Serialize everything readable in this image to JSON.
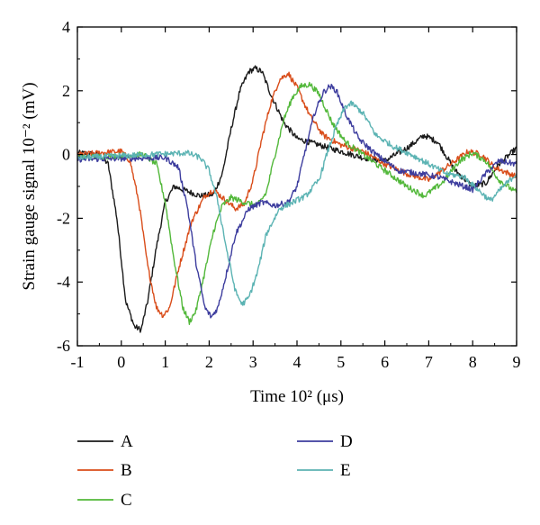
{
  "chart_data": {
    "type": "line",
    "title": "",
    "xlabel": "Time 10² (μs)",
    "ylabel": "Strain gauge signal 10⁻² (mV)",
    "xlim": [
      -1,
      9
    ],
    "ylim": [
      -6,
      4
    ],
    "xticks": [
      "-1",
      "0",
      "1",
      "2",
      "3",
      "4",
      "5",
      "6",
      "7",
      "8",
      "9"
    ],
    "yticks": [
      "-6",
      "-4",
      "-2",
      "0",
      "2",
      "4"
    ],
    "grid": false,
    "legend_position": "bottom",
    "series": [
      {
        "name": "A",
        "color": "#1a1a1a",
        "points": [
          [
            -1,
            0.05
          ],
          [
            -0.5,
            0.0
          ],
          [
            -0.3,
            -0.3
          ],
          [
            -0.1,
            -2.0
          ],
          [
            0.1,
            -4.6
          ],
          [
            0.3,
            -5.4
          ],
          [
            0.45,
            -5.5
          ],
          [
            0.6,
            -4.6
          ],
          [
            0.8,
            -2.9
          ],
          [
            1.0,
            -1.5
          ],
          [
            1.2,
            -1.0
          ],
          [
            1.5,
            -1.15
          ],
          [
            1.8,
            -1.3
          ],
          [
            2.1,
            -1.25
          ],
          [
            2.3,
            -0.6
          ],
          [
            2.5,
            0.8
          ],
          [
            2.7,
            2.0
          ],
          [
            2.9,
            2.6
          ],
          [
            3.05,
            2.7
          ],
          [
            3.2,
            2.6
          ],
          [
            3.4,
            1.9
          ],
          [
            3.7,
            1.0
          ],
          [
            4.0,
            0.5
          ],
          [
            4.5,
            0.3
          ],
          [
            5.0,
            0.1
          ],
          [
            5.5,
            -0.1
          ],
          [
            6.0,
            -0.2
          ],
          [
            6.5,
            0.2
          ],
          [
            6.9,
            0.6
          ],
          [
            7.2,
            0.4
          ],
          [
            7.6,
            -0.5
          ],
          [
            8.0,
            -1.0
          ],
          [
            8.3,
            -0.9
          ],
          [
            8.6,
            -0.3
          ],
          [
            9.0,
            0.2
          ]
        ]
      },
      {
        "name": "B",
        "color": "#d94d1a",
        "points": [
          [
            -1,
            0.0
          ],
          [
            0.0,
            0.1
          ],
          [
            0.2,
            -0.2
          ],
          [
            0.4,
            -1.5
          ],
          [
            0.6,
            -3.5
          ],
          [
            0.8,
            -4.8
          ],
          [
            0.95,
            -5.05
          ],
          [
            1.1,
            -4.8
          ],
          [
            1.3,
            -3.6
          ],
          [
            1.6,
            -2.1
          ],
          [
            1.9,
            -1.3
          ],
          [
            2.1,
            -1.1
          ],
          [
            2.3,
            -1.35
          ],
          [
            2.6,
            -1.7
          ],
          [
            2.8,
            -1.55
          ],
          [
            3.0,
            -0.8
          ],
          [
            3.2,
            0.5
          ],
          [
            3.4,
            1.6
          ],
          [
            3.6,
            2.35
          ],
          [
            3.8,
            2.55
          ],
          [
            4.0,
            2.1
          ],
          [
            4.3,
            1.2
          ],
          [
            4.6,
            0.6
          ],
          [
            5.0,
            0.3
          ],
          [
            5.5,
            0.1
          ],
          [
            6.0,
            -0.3
          ],
          [
            6.5,
            -0.6
          ],
          [
            7.0,
            -0.8
          ],
          [
            7.5,
            -0.3
          ],
          [
            7.9,
            0.1
          ],
          [
            8.2,
            0.0
          ],
          [
            8.5,
            -0.4
          ],
          [
            9.0,
            -0.7
          ]
        ]
      },
      {
        "name": "C",
        "color": "#52b83a",
        "points": [
          [
            -1,
            -0.1
          ],
          [
            0.5,
            0.0
          ],
          [
            0.8,
            -0.3
          ],
          [
            1.0,
            -1.5
          ],
          [
            1.2,
            -3.3
          ],
          [
            1.4,
            -4.8
          ],
          [
            1.55,
            -5.25
          ],
          [
            1.7,
            -4.9
          ],
          [
            1.9,
            -3.7
          ],
          [
            2.1,
            -2.4
          ],
          [
            2.3,
            -1.6
          ],
          [
            2.5,
            -1.35
          ],
          [
            2.8,
            -1.5
          ],
          [
            3.1,
            -1.6
          ],
          [
            3.3,
            -1.2
          ],
          [
            3.5,
            0.0
          ],
          [
            3.7,
            1.1
          ],
          [
            3.9,
            1.8
          ],
          [
            4.1,
            2.15
          ],
          [
            4.3,
            2.2
          ],
          [
            4.5,
            1.9
          ],
          [
            4.8,
            1.0
          ],
          [
            5.1,
            0.4
          ],
          [
            5.5,
            0.0
          ],
          [
            6.0,
            -0.5
          ],
          [
            6.5,
            -1.0
          ],
          [
            6.9,
            -1.3
          ],
          [
            7.3,
            -0.9
          ],
          [
            7.7,
            -0.2
          ],
          [
            8.0,
            0.05
          ],
          [
            8.3,
            -0.2
          ],
          [
            8.6,
            -0.8
          ],
          [
            9.0,
            -1.2
          ]
        ]
      },
      {
        "name": "D",
        "color": "#3d3d9e",
        "points": [
          [
            -1,
            -0.15
          ],
          [
            1.0,
            -0.1
          ],
          [
            1.3,
            -0.4
          ],
          [
            1.5,
            -1.6
          ],
          [
            1.7,
            -3.4
          ],
          [
            1.9,
            -4.8
          ],
          [
            2.05,
            -5.1
          ],
          [
            2.2,
            -4.8
          ],
          [
            2.4,
            -3.7
          ],
          [
            2.6,
            -2.5
          ],
          [
            2.9,
            -1.7
          ],
          [
            3.2,
            -1.5
          ],
          [
            3.5,
            -1.6
          ],
          [
            3.8,
            -1.5
          ],
          [
            4.0,
            -1.0
          ],
          [
            4.2,
            0.2
          ],
          [
            4.4,
            1.3
          ],
          [
            4.6,
            1.95
          ],
          [
            4.75,
            2.15
          ],
          [
            4.9,
            2.0
          ],
          [
            5.1,
            1.3
          ],
          [
            5.4,
            0.5
          ],
          [
            5.8,
            0.0
          ],
          [
            6.3,
            -0.5
          ],
          [
            6.8,
            -0.6
          ],
          [
            7.2,
            -0.7
          ],
          [
            7.6,
            -0.9
          ],
          [
            8.0,
            -1.1
          ],
          [
            8.3,
            -0.6
          ],
          [
            8.6,
            -0.2
          ],
          [
            9.0,
            -0.3
          ]
        ]
      },
      {
        "name": "E",
        "color": "#5bb3b3",
        "points": [
          [
            -1,
            -0.1
          ],
          [
            1.5,
            0.05
          ],
          [
            1.8,
            -0.1
          ],
          [
            2.0,
            -0.5
          ],
          [
            2.2,
            -1.5
          ],
          [
            2.4,
            -3.0
          ],
          [
            2.6,
            -4.3
          ],
          [
            2.75,
            -4.7
          ],
          [
            2.9,
            -4.5
          ],
          [
            3.1,
            -3.7
          ],
          [
            3.3,
            -2.5
          ],
          [
            3.6,
            -1.7
          ],
          [
            3.9,
            -1.5
          ],
          [
            4.2,
            -1.3
          ],
          [
            4.5,
            -0.8
          ],
          [
            4.7,
            0.1
          ],
          [
            4.9,
            0.9
          ],
          [
            5.1,
            1.5
          ],
          [
            5.25,
            1.6
          ],
          [
            5.5,
            1.3
          ],
          [
            5.8,
            0.6
          ],
          [
            6.2,
            0.25
          ],
          [
            6.6,
            0.0
          ],
          [
            7.0,
            -0.3
          ],
          [
            7.4,
            -0.6
          ],
          [
            7.8,
            -0.7
          ],
          [
            8.2,
            -1.2
          ],
          [
            8.4,
            -1.45
          ],
          [
            8.7,
            -1.0
          ],
          [
            9.0,
            -0.6
          ]
        ]
      }
    ]
  }
}
